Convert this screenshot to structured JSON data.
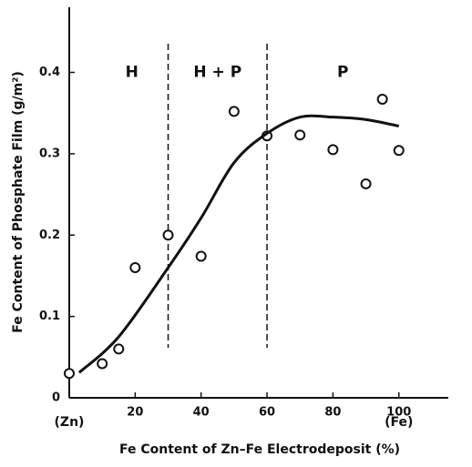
{
  "chart_data": {
    "type": "scatter",
    "x_label": "Fe Content of Zn–Fe Electrodeposit (%)",
    "y_label": "Fe Content of Phosphate Film (g/m²)",
    "xlim": [
      0,
      115
    ],
    "ylim": [
      0,
      0.48
    ],
    "xticks": [
      20,
      40,
      60,
      80,
      100
    ],
    "yticks": [
      0,
      0.1,
      0.2,
      0.3,
      0.4
    ],
    "end_labels": [
      {
        "text": "(Zn)",
        "x": 0
      },
      {
        "text": "(Fe)",
        "x": 100
      }
    ],
    "dividers": [
      30,
      60
    ],
    "annotations": [
      {
        "text": "H",
        "x": 19,
        "y": 0.4
      },
      {
        "text": "H + P",
        "x": 45,
        "y": 0.4
      },
      {
        "text": "P",
        "x": 83,
        "y": 0.4
      }
    ],
    "color": "#111111",
    "series": [
      {
        "type": "scatter",
        "x": [
          0,
          10,
          15,
          20,
          30,
          40,
          50,
          60,
          70,
          80,
          90,
          95,
          100
        ],
        "values": [
          0.03,
          0.042,
          0.06,
          0.16,
          0.2,
          0.174,
          0.352,
          0.322,
          0.323,
          0.305,
          0.263,
          0.367,
          0.304
        ]
      },
      {
        "type": "line",
        "x": [
          3,
          15,
          30,
          40,
          50,
          60,
          70,
          80,
          90,
          100
        ],
        "values": [
          0.031,
          0.075,
          0.16,
          0.221,
          0.289,
          0.325,
          0.345,
          0.345,
          0.342,
          0.334
        ]
      }
    ]
  }
}
